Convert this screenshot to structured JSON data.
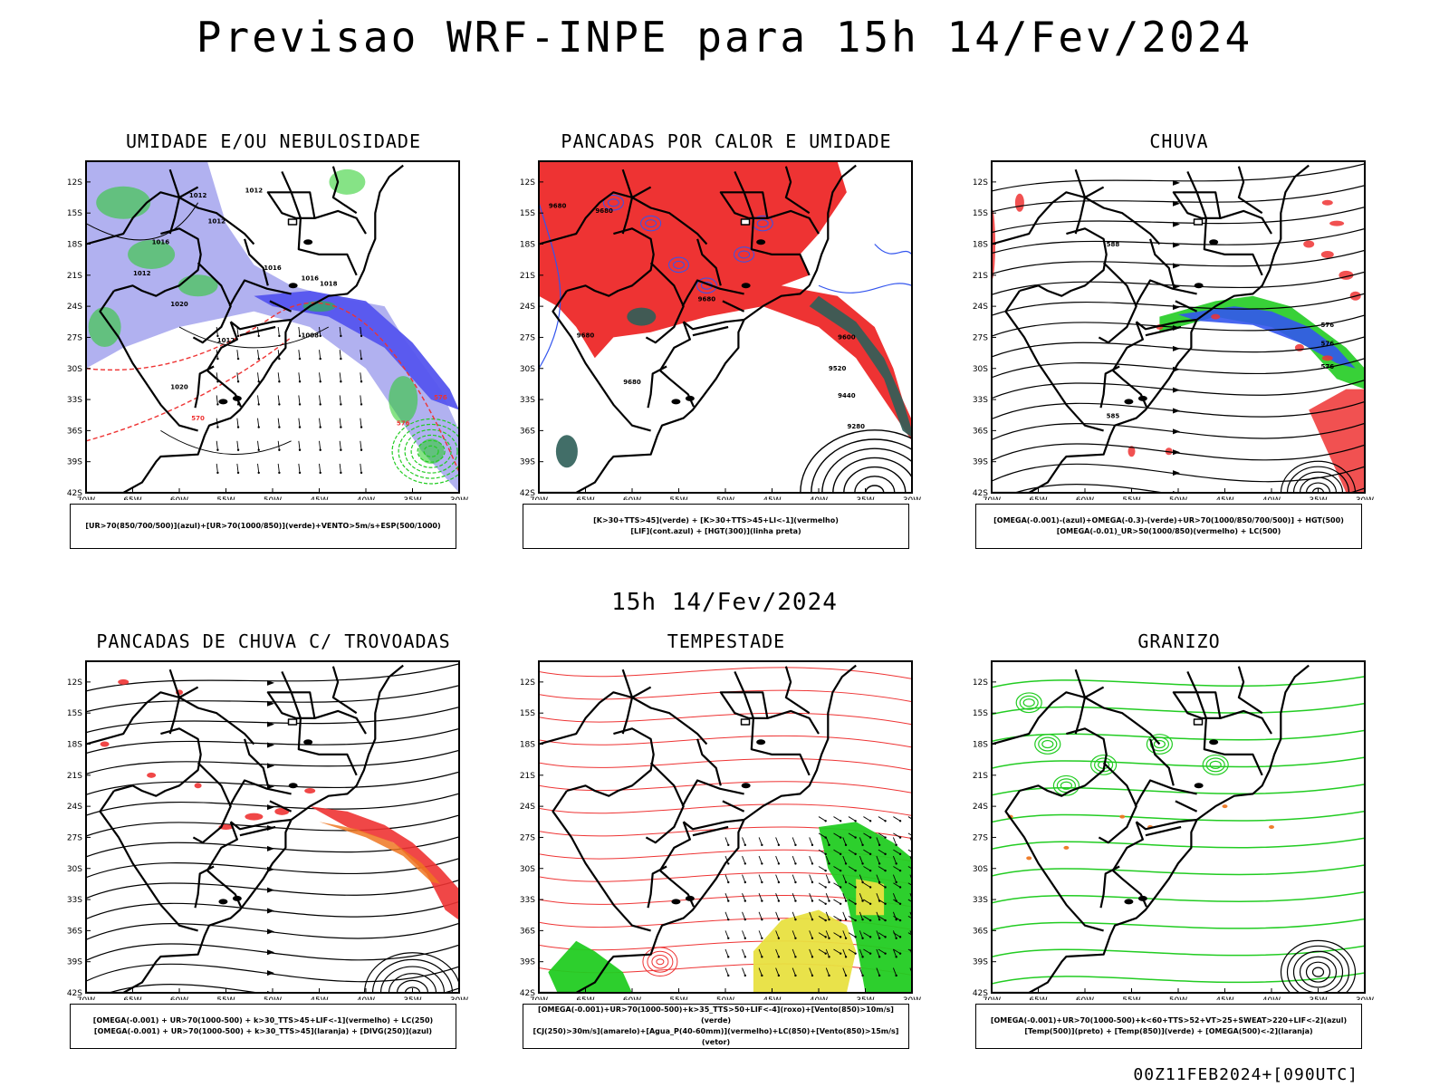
{
  "title": "Previsao WRF-INPE  para 15h 14/Fev/2024",
  "mid_date": "15h 14/Fev/2024",
  "footer": "00Z11FEB2024+[090UTC]",
  "axes": {
    "lat_labels": [
      "12S",
      "15S",
      "18S",
      "21S",
      "24S",
      "27S",
      "30S",
      "33S",
      "36S",
      "39S",
      "42S"
    ],
    "lon_labels": [
      "70W",
      "65W",
      "60W",
      "55W",
      "50W",
      "45W",
      "40W",
      "35W",
      "30W"
    ]
  },
  "colors": {
    "fill_blue": "#a8a8ee",
    "deep_blue": "#5555ee",
    "green": "#22cc22",
    "red": "#ee3333",
    "teal": "#2e5e58",
    "yellow": "#e8e040",
    "orange": "#ee7722",
    "contour_blue": "#3355ee"
  },
  "panels": [
    {
      "title": "UMIDADE E/OU NEBULOSIDADE",
      "legend": [
        "[UR>70(850/700/500)](azul)+[UR>70(1000/850)](verde)+VENTO>5m/s+ESP(500/1000)"
      ],
      "contour_labels": [
        "1012",
        "1012",
        "1012",
        "1016",
        "1012",
        "1016",
        "1016",
        "1018",
        "1020",
        "1012",
        "1008",
        "1020",
        "570",
        "576",
        "576"
      ]
    },
    {
      "title": "PANCADAS POR CALOR E UMIDADE",
      "legend": [
        "[K>30+TTS>45](verde) + [K>30+TTS>45+LI<-1](vermelho)",
        "[LIF](cont.azul) + [HGT(300)](linha preta)"
      ],
      "contour_labels": [
        "9680",
        "9680",
        "9680",
        "9680",
        "9600",
        "9520",
        "9440",
        "9280",
        "9680"
      ]
    },
    {
      "title": "CHUVA",
      "legend": [
        "[OMEGA(-0.001)-(azul)+OMEGA(-0.3)-(verde)+UR>70(1000/850/700/500)] + HGT(500)",
        "[OMEGA(-0.01)_UR>50(1000/850)(vermelho) + LC(500)"
      ],
      "contour_labels": [
        "588",
        "585",
        "576",
        "576",
        "576"
      ]
    },
    {
      "title": "PANCADAS DE CHUVA C/ TROVOADAS",
      "legend": [
        "[OMEGA(-0.001) + UR>70(1000-500) + k>30_TTS>45+LIF<-1](vermelho) + LC(250)",
        "[OMEGA(-0.001) + UR>70(1000-500) + k>30_TTS>45](laranja) + [DIVG(250)](azul)"
      ],
      "contour_labels": []
    },
    {
      "title": "TEMPESTADE",
      "legend": [
        "[OMEGA(-0.001)+UR>70(1000-500)+k>35_TTS>50+LIF<-4](roxo)+[Vento(850)>10m/s](verde)",
        "[CJ(250)>30m/s](amarelo)+[Agua_P(40-60mm)](vermelho)+LC(850)+[Vento(850)>15m/s](vetor)"
      ],
      "contour_labels": []
    },
    {
      "title": "GRANIZO",
      "legend": [
        "[OMEGA(-0.001)+UR>70(1000-500)+k<60+TTS>52+VT>25+SWEAT>220+LIF<-2](azul)",
        "[Temp(500)](preto) + [Temp(850)](verde) + [OMEGA(500)<-2](laranja)"
      ],
      "contour_labels": []
    }
  ]
}
